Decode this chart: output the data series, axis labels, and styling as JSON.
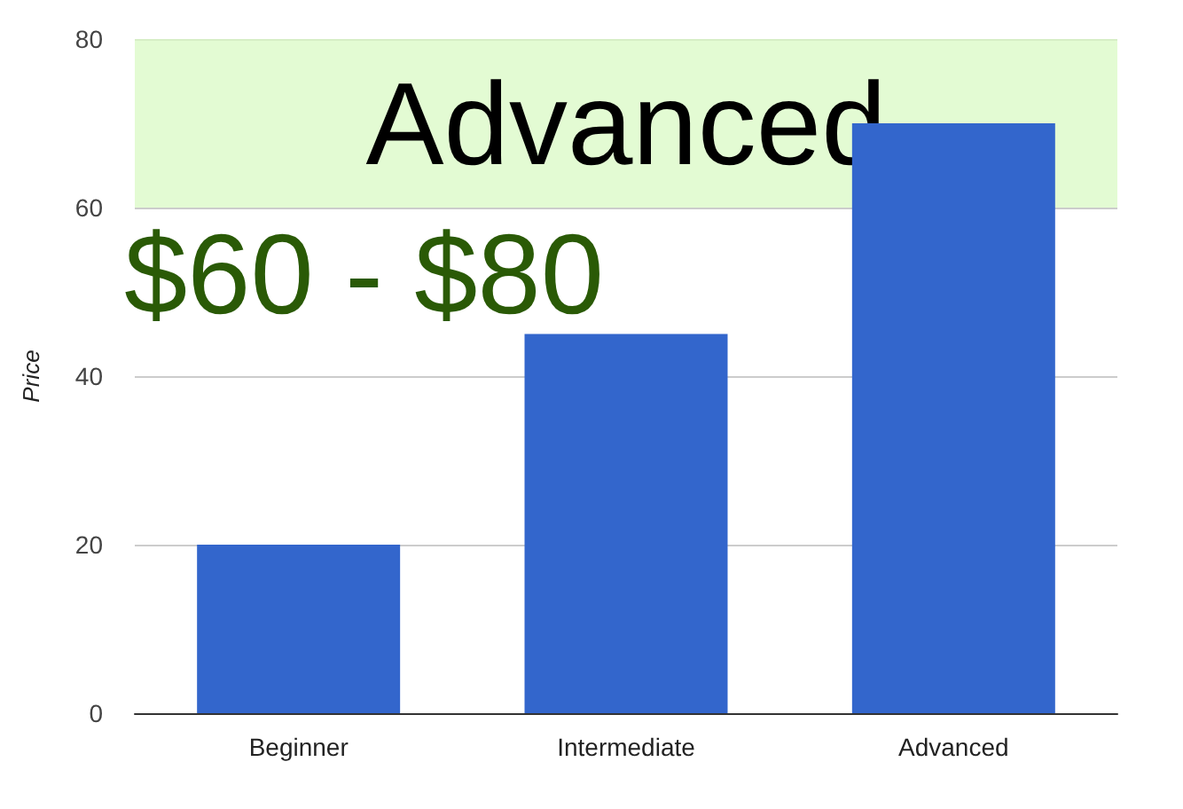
{
  "chart_data": {
    "type": "bar",
    "ylabel": "Price",
    "categories": [
      "Beginner",
      "Intermediate",
      "Advanced"
    ],
    "values": [
      20,
      45,
      70
    ],
    "color": "#3366cc",
    "ylim": [
      0,
      80
    ],
    "yticks": [
      0,
      20,
      40,
      60,
      80
    ],
    "grid": "y",
    "bands": [
      {
        "axis": "y",
        "from": 60,
        "to": 80,
        "label": "Advanced",
        "color": "#d9f9c4"
      }
    ],
    "annotations": [
      "$60 - $80"
    ]
  }
}
